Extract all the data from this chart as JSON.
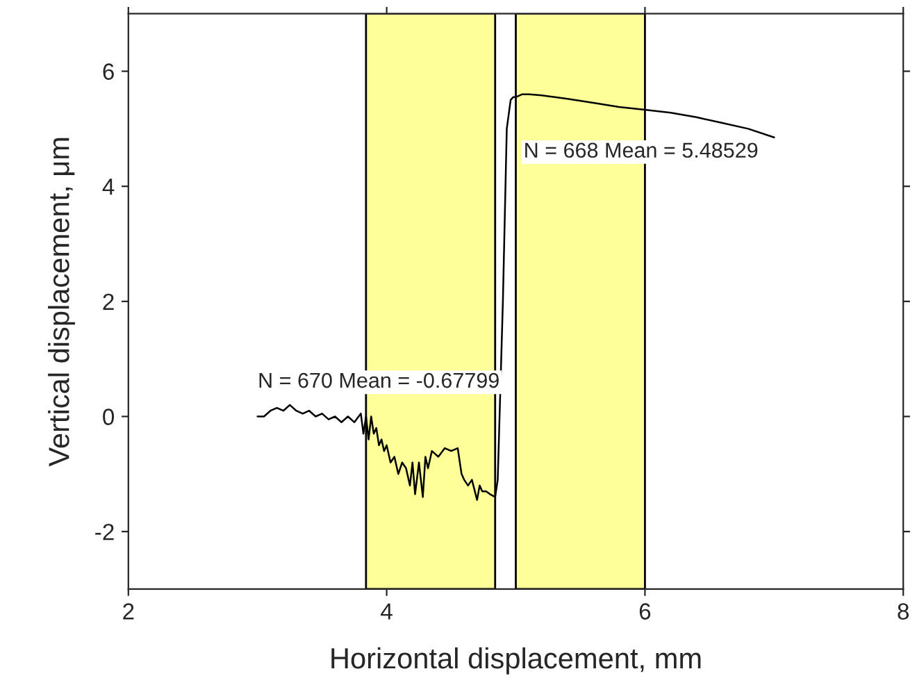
{
  "chart_data": {
    "type": "line",
    "xlabel": "Horizontal displacement, mm",
    "ylabel": "Vertical displacement, μm",
    "xlim": [
      2,
      8
    ],
    "xticks": [
      2,
      4,
      6,
      8
    ],
    "ylim": [
      -3,
      7
    ],
    "yticks": [
      -2,
      0,
      2,
      4,
      6
    ],
    "grid": false,
    "legend": false,
    "marker": "none",
    "line_style": "solid",
    "bands": [
      {
        "axis": "x",
        "from": 3.84,
        "to": 4.84,
        "color": "#ffff99"
      },
      {
        "axis": "x",
        "from": 5.0,
        "to": 6.0,
        "color": "#ffff99"
      }
    ],
    "annotations": [
      "N = 670 Mean = -0.67799",
      "N = 668 Mean = 5.48529"
    ],
    "series": [
      {
        "color": "#000000",
        "x": [
          3.0,
          3.05,
          3.1,
          3.15,
          3.2,
          3.25,
          3.3,
          3.35,
          3.4,
          3.45,
          3.5,
          3.55,
          3.6,
          3.65,
          3.7,
          3.75,
          3.8,
          3.82,
          3.84,
          3.86,
          3.88,
          3.9,
          3.92,
          3.94,
          3.96,
          3.98,
          4.0,
          4.03,
          4.06,
          4.09,
          4.12,
          4.15,
          4.18,
          4.2,
          4.22,
          4.25,
          4.28,
          4.3,
          4.32,
          4.35,
          4.4,
          4.45,
          4.5,
          4.55,
          4.58,
          4.6,
          4.63,
          4.66,
          4.7,
          4.72,
          4.74,
          4.77,
          4.8,
          4.84,
          4.86,
          4.9,
          4.93,
          4.96,
          4.98,
          5.0,
          5.05,
          5.1,
          5.2,
          5.4,
          5.6,
          5.8,
          6.0,
          6.2,
          6.4,
          6.6,
          6.8,
          7.0
        ],
        "values": [
          0.0,
          0.0,
          0.1,
          0.15,
          0.1,
          0.2,
          0.1,
          0.05,
          0.1,
          0.0,
          0.05,
          -0.05,
          0.0,
          -0.1,
          0.0,
          -0.1,
          0.05,
          -0.3,
          0.0,
          -0.4,
          0.0,
          -0.3,
          -0.2,
          -0.5,
          -0.4,
          -0.6,
          -0.5,
          -0.8,
          -0.7,
          -1.0,
          -0.8,
          -0.9,
          -1.2,
          -0.8,
          -1.35,
          -0.8,
          -1.4,
          -0.7,
          -0.9,
          -0.6,
          -0.7,
          -0.55,
          -0.6,
          -0.55,
          -1.0,
          -1.1,
          -1.2,
          -1.1,
          -1.45,
          -1.2,
          -1.3,
          -1.3,
          -1.35,
          -1.4,
          -1.1,
          2.0,
          5.0,
          5.5,
          5.55,
          5.55,
          5.6,
          5.6,
          5.58,
          5.52,
          5.45,
          5.38,
          5.33,
          5.28,
          5.2,
          5.1,
          5.0,
          4.85
        ]
      }
    ]
  }
}
